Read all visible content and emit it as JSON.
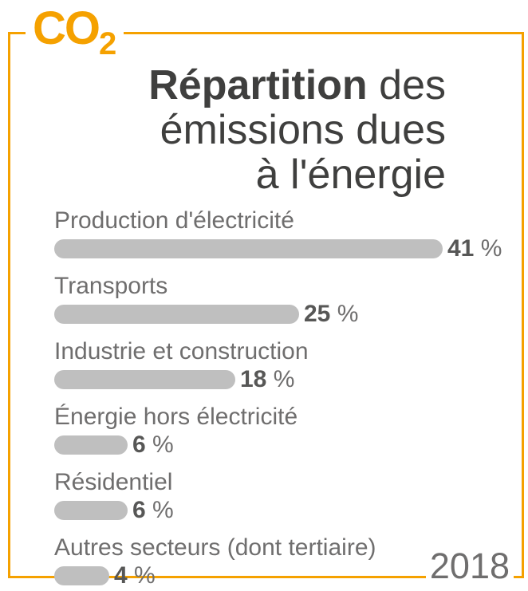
{
  "logo": {
    "text": "CO",
    "subscript": "2"
  },
  "title": {
    "line1_bold": "Répartition",
    "line1_rest": " des",
    "line2": "émissions dues",
    "line3": "à l'énergie"
  },
  "chart_data": {
    "type": "bar",
    "orientation": "horizontal",
    "title": "Répartition des émissions dues à l'énergie",
    "unit": "%",
    "categories": [
      "Production d'électricité",
      "Transports",
      "Industrie et construction",
      "Énergie hors électricité",
      "Résidentiel",
      "Autres secteurs (dont tertiaire)"
    ],
    "values": [
      41,
      25,
      18,
      6,
      6,
      4
    ],
    "value_labels": [
      "41 %",
      "25 %",
      "18 %",
      "6 %",
      "6 %",
      "4 %"
    ],
    "xlim": [
      0,
      41
    ],
    "grid": false,
    "legend": false,
    "year": "2018"
  },
  "year": "2018",
  "colors": {
    "accent": "#f5a100",
    "bar": "#bfbfbf",
    "title_text": "#3f3f3e",
    "label_text": "#6f6e6e",
    "value_text": "#575756",
    "background": "#ffffff"
  }
}
